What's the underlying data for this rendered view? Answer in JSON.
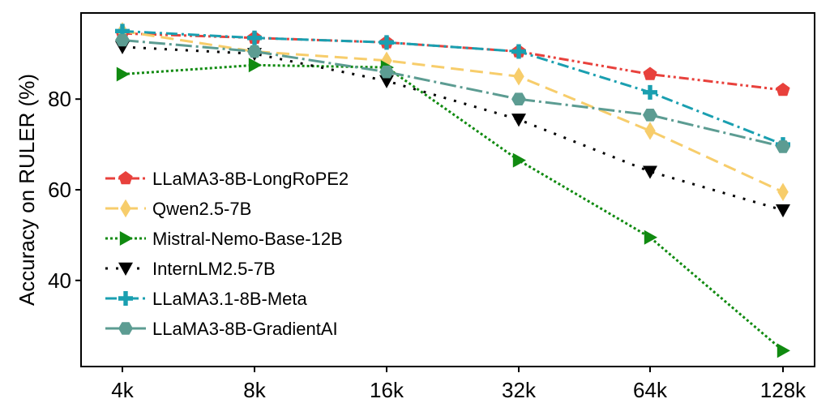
{
  "chart_data": {
    "type": "line",
    "title": "",
    "xlabel": "",
    "ylabel": "Accuracy on RULER (%)",
    "categories": [
      "4k",
      "8k",
      "16k",
      "32k",
      "64k",
      "128k"
    ],
    "ylim": [
      21,
      99
    ],
    "yticks": [
      "40",
      "60",
      "80"
    ],
    "grid": false,
    "legend_position": "center-left",
    "series": [
      {
        "name": "LLaMA3-8B-LongRoPE2",
        "color": "#e8413c",
        "dash": "dashdotdot",
        "marker": "pentagon",
        "values": [
          94.5,
          93.5,
          92.5,
          90.5,
          85.5,
          82.0
        ]
      },
      {
        "name": "Qwen2.5-7B",
        "color": "#f7cd6b",
        "dash": "dashed",
        "marker": "diamond",
        "values": [
          95.0,
          90.5,
          88.5,
          85.0,
          73.0,
          59.5
        ]
      },
      {
        "name": "Mistral-Nemo-Base-12B",
        "color": "#108a10",
        "dash": "dotted",
        "marker": "triangle-right",
        "values": [
          85.5,
          87.5,
          87.0,
          66.5,
          49.5,
          24.5
        ]
      },
      {
        "name": "InternLM2.5-7B",
        "color": "#000000",
        "dash": "dotted-sparse",
        "marker": "triangle-down",
        "values": [
          91.5,
          90.0,
          84.0,
          75.5,
          64.0,
          55.5
        ]
      },
      {
        "name": "LLaMA3.1-8B-Meta",
        "color": "#1a9fb0",
        "dash": "dashdot",
        "marker": "plus",
        "values": [
          95.0,
          93.5,
          92.5,
          90.5,
          81.5,
          70.0
        ]
      },
      {
        "name": "LLaMA3-8B-GradientAI",
        "color": "#5c9c92",
        "dash": "longdashdot",
        "marker": "hexagon",
        "values": [
          93.0,
          90.5,
          86.0,
          80.0,
          76.5,
          69.5
        ]
      }
    ]
  }
}
